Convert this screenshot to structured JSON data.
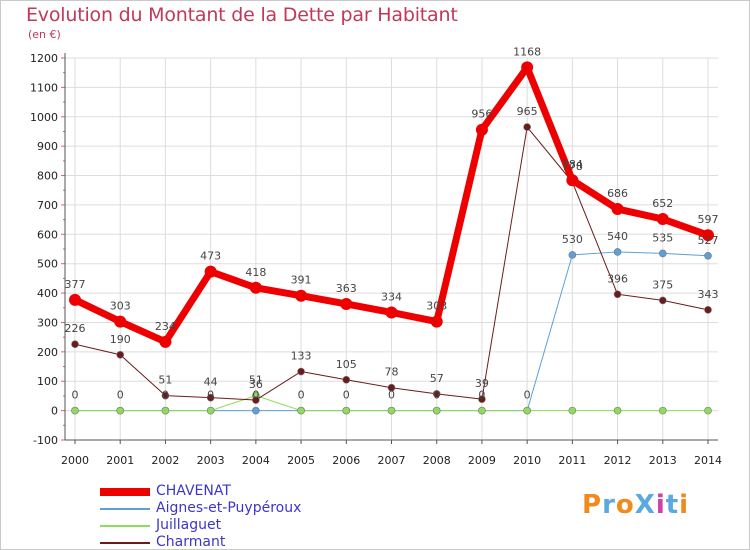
{
  "title": "Evolution du Montant de la Dette par Habitant",
  "unit_label": "(en €)",
  "logo_text": "ProXiti",
  "colors": {
    "title": "#c0395a",
    "axis": "#555555",
    "grid": "#dddddd",
    "axis_tick_label": "#222222",
    "data_label": "#444444",
    "legend_text": "#3b36c9"
  },
  "chart_data": {
    "type": "line",
    "title": "Evolution du Montant de la Dette par Habitant",
    "ylabel": "(en €)",
    "xlabel": "",
    "x": [
      "2000",
      "2001",
      "2002",
      "2003",
      "2004",
      "2005",
      "2006",
      "2007",
      "2008",
      "2009",
      "2010",
      "2011",
      "2012",
      "2013",
      "2014"
    ],
    "ylim": [
      -100,
      1200
    ],
    "yticks": [
      -100,
      0,
      100,
      200,
      300,
      400,
      500,
      600,
      700,
      800,
      900,
      1000,
      1100,
      1200
    ],
    "grid": true,
    "legend_position": "bottom-left",
    "series": [
      {
        "name": "CHAVENAT",
        "color": "#ee0000",
        "width": 7,
        "values": [
          377,
          303,
          234,
          473,
          418,
          391,
          363,
          334,
          303,
          956,
          1168,
          784,
          686,
          652,
          597
        ],
        "labels": [
          "377",
          "303",
          "234",
          "473",
          "418",
          "391",
          "363",
          "334",
          "303",
          "956",
          "1168",
          "784",
          "686",
          "652",
          "597"
        ]
      },
      {
        "name": "Aignes-et-Puypéroux",
        "color": "#5e9fd6",
        "width": 1,
        "values": [
          0,
          0,
          0,
          0,
          0,
          0,
          0,
          0,
          0,
          0,
          0,
          530,
          540,
          535,
          527
        ],
        "labels": [
          "0",
          "0",
          "0",
          "0",
          "0",
          "0",
          "0",
          "0",
          "0",
          "0",
          "0",
          "530",
          "540",
          "535",
          "527"
        ]
      },
      {
        "name": "Juillaguet",
        "color": "#8fdc5c",
        "width": 1,
        "values": [
          0,
          0,
          0,
          0,
          51,
          0,
          0,
          0,
          0,
          0,
          0,
          0,
          0,
          0,
          0
        ],
        "labels": [
          "",
          "",
          "",
          "",
          "51",
          "",
          "",
          "",
          "",
          "",
          "",
          "",
          "",
          "",
          ""
        ]
      },
      {
        "name": "Charmant",
        "color": "#6b1b1b",
        "width": 1,
        "values": [
          226,
          190,
          51,
          44,
          36,
          133,
          105,
          78,
          57,
          39,
          965,
          778,
          396,
          375,
          343
        ],
        "labels": [
          "226",
          "190",
          "51",
          "44",
          "36",
          "133",
          "105",
          "78",
          "57",
          "39",
          "965",
          "778",
          "396",
          "375",
          "343"
        ]
      }
    ]
  }
}
